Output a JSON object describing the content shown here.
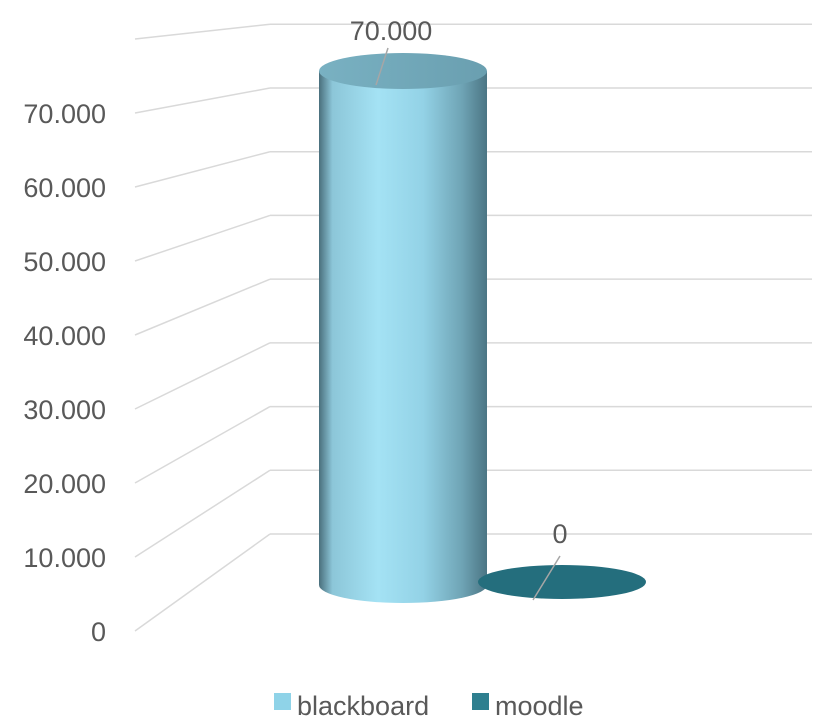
{
  "chart_data": {
    "type": "bar",
    "style": "3d-cylinder",
    "categories": [
      "blackboard",
      "moodle"
    ],
    "series": [
      {
        "name": "blackboard",
        "values": [
          70000,
          null
        ],
        "color": "#8fd3e8"
      },
      {
        "name": "moodle",
        "values": [
          null,
          0
        ],
        "color": "#2e7f8f"
      }
    ],
    "data_labels": [
      "70.000",
      "0"
    ],
    "y_ticks": [
      "0",
      "10.000",
      "20.000",
      "30.000",
      "40.000",
      "50.000",
      "60.000",
      "70.000"
    ],
    "ylim": [
      0,
      70000
    ],
    "title": "",
    "xlabel": "",
    "ylabel": "",
    "grid": true,
    "legend": {
      "position": "bottom",
      "entries": [
        "blackboard",
        "moodle"
      ]
    }
  },
  "colors": {
    "grid": "#d9d9d9",
    "text": "#595959",
    "leader": "#a6a6a6",
    "blackboard_light": "#9fe0f3",
    "blackboard_dark": "#4e7f8f",
    "moodle_top": "#246e7d"
  }
}
